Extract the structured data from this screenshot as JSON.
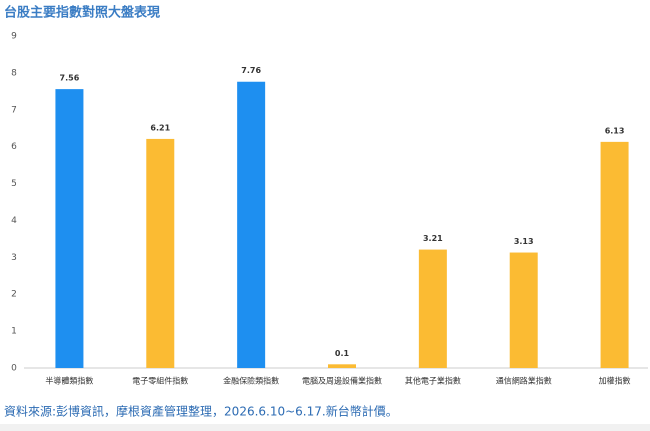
{
  "chart_data": {
    "type": "bar",
    "title": "台股主要指數對照大盤表現",
    "categories": [
      "半導體類指數",
      "電子零組件指數",
      "金融保險類指數",
      "電腦及周邊設備業指數",
      "其他電子業指數",
      "通信網路業指數",
      "加權指數"
    ],
    "values": [
      7.56,
      6.21,
      7.76,
      0.1,
      3.21,
      3.13,
      6.13
    ],
    "colors": [
      "#1e8ff0",
      "#fbbb33",
      "#1e8ff0",
      "#fbbb33",
      "#fbbb33",
      "#fbbb33",
      "#fbbb33"
    ],
    "ylim": [
      0,
      9
    ],
    "yticks": [
      0,
      1,
      2,
      3,
      4,
      5,
      6,
      7,
      8,
      9
    ],
    "grid": false,
    "note": "資料來源:彭博資訊，摩根資產管理整理，2026.6.10~6.17.新台幣計價。"
  }
}
